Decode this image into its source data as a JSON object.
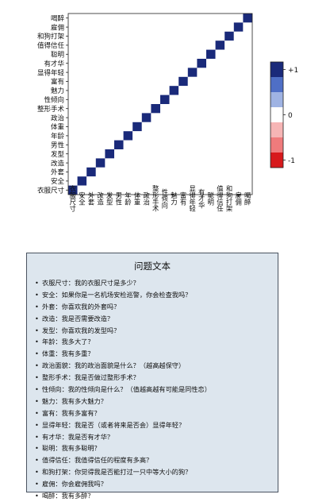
{
  "chart_data": {
    "type": "heatmap",
    "row_labels": [
      "喝醉",
      "雇佣",
      "和狗打架",
      "值得信任",
      "聪明",
      "有才华",
      "显得年轻",
      "富有",
      "魅力",
      "性倾向",
      "整形手术",
      "政治",
      "体重",
      "年龄",
      "男性",
      "发型",
      "改造",
      "外套",
      "安全",
      "衣服尺寸"
    ],
    "col_labels": [
      "衣服尺寸",
      "安全",
      "外套",
      "改造",
      "发型",
      "男性",
      "年龄",
      "体重",
      "政治",
      "整形手术",
      "性倾向",
      "魅力",
      "富有",
      "显得年轻",
      "有才华",
      "聪明",
      "值得信任",
      "和狗打架",
      "雇佣",
      "喝醉"
    ],
    "values": [
      [
        0.0,
        0.0,
        0.0,
        0.0,
        0.0,
        0.0,
        0.0,
        0.0,
        0.0,
        0.0,
        0.0,
        0.0,
        0.0,
        0.0,
        0.0,
        0.0,
        0.0,
        0.0,
        0.0,
        1.0
      ],
      [
        0.0,
        0.0,
        0.0,
        0.0,
        0.0,
        0.0,
        0.0,
        0.0,
        0.0,
        0.0,
        0.0,
        0.0,
        0.0,
        0.0,
        0.0,
        0.0,
        0.0,
        0.0,
        1.0,
        0.0
      ],
      [
        0.0,
        0.0,
        0.0,
        0.0,
        0.0,
        0.0,
        0.0,
        0.0,
        0.0,
        0.0,
        0.0,
        0.0,
        0.0,
        0.0,
        0.0,
        0.0,
        0.0,
        1.0,
        0.0,
        0.0
      ],
      [
        0.0,
        0.0,
        0.0,
        0.0,
        0.0,
        0.0,
        0.0,
        0.0,
        0.0,
        0.0,
        0.0,
        0.0,
        0.0,
        0.0,
        0.0,
        0.0,
        1.0,
        0.0,
        0.0,
        0.0
      ],
      [
        0.0,
        0.0,
        0.0,
        0.0,
        0.0,
        0.0,
        0.0,
        0.0,
        0.0,
        0.0,
        0.0,
        0.0,
        0.0,
        0.0,
        0.0,
        1.0,
        0.0,
        0.0,
        0.0,
        0.0
      ],
      [
        0.0,
        0.0,
        0.0,
        0.0,
        0.0,
        0.0,
        0.0,
        0.0,
        0.0,
        0.0,
        0.0,
        0.0,
        0.0,
        0.0,
        1.0,
        0.0,
        0.0,
        0.0,
        0.0,
        0.0
      ],
      [
        0.0,
        0.0,
        0.0,
        0.0,
        0.0,
        0.0,
        0.0,
        0.0,
        0.0,
        0.0,
        0.0,
        0.0,
        0.0,
        1.0,
        0.0,
        0.0,
        0.0,
        0.0,
        0.0,
        0.0
      ],
      [
        0.0,
        0.0,
        0.0,
        0.0,
        0.0,
        0.0,
        0.0,
        0.0,
        0.0,
        0.0,
        0.0,
        0.0,
        1.0,
        0.0,
        0.0,
        0.0,
        0.0,
        0.0,
        0.0,
        0.0
      ],
      [
        0.0,
        0.0,
        0.0,
        0.0,
        0.0,
        0.0,
        0.0,
        0.0,
        0.0,
        0.0,
        0.0,
        1.0,
        0.0,
        0.0,
        0.0,
        0.0,
        0.0,
        0.0,
        0.0,
        0.0
      ],
      [
        0.0,
        0.0,
        0.0,
        0.0,
        0.0,
        0.0,
        0.0,
        0.0,
        0.0,
        0.0,
        1.0,
        0.0,
        0.0,
        0.0,
        0.0,
        0.0,
        0.0,
        0.0,
        0.0,
        0.0
      ],
      [
        0.0,
        0.0,
        0.0,
        0.0,
        0.0,
        0.0,
        0.0,
        0.0,
        0.0,
        1.0,
        0.0,
        0.0,
        0.0,
        0.0,
        0.0,
        0.0,
        0.0,
        0.0,
        0.0,
        0.0
      ],
      [
        0.0,
        0.0,
        0.0,
        0.0,
        0.0,
        0.0,
        0.0,
        0.0,
        1.0,
        0.0,
        0.0,
        0.0,
        0.0,
        0.0,
        0.0,
        0.0,
        0.0,
        0.0,
        0.0,
        0.0
      ],
      [
        0.0,
        0.0,
        0.0,
        0.0,
        0.0,
        0.0,
        0.0,
        1.0,
        0.0,
        0.0,
        0.0,
        0.0,
        0.0,
        0.0,
        0.0,
        0.0,
        0.0,
        0.0,
        0.0,
        0.0
      ],
      [
        0.0,
        0.0,
        0.0,
        0.0,
        0.0,
        0.0,
        1.0,
        0.0,
        0.0,
        0.0,
        0.0,
        0.0,
        0.0,
        0.0,
        0.0,
        0.0,
        0.0,
        0.0,
        0.0,
        0.0
      ],
      [
        0.0,
        0.0,
        0.0,
        0.0,
        0.0,
        1.0,
        0.0,
        0.0,
        0.0,
        0.0,
        0.0,
        0.0,
        0.0,
        0.0,
        0.0,
        0.0,
        0.0,
        0.0,
        0.0,
        0.0
      ],
      [
        0.0,
        0.0,
        0.0,
        0.0,
        1.0,
        0.0,
        0.0,
        0.0,
        0.0,
        0.0,
        0.0,
        0.0,
        0.0,
        0.0,
        0.0,
        0.0,
        0.0,
        0.0,
        0.0,
        0.0
      ],
      [
        0.0,
        0.0,
        0.0,
        1.0,
        0.0,
        0.0,
        0.0,
        0.0,
        0.0,
        0.0,
        0.0,
        0.0,
        0.0,
        0.0,
        0.0,
        0.0,
        0.0,
        0.0,
        0.0,
        0.0
      ],
      [
        0.0,
        0.0,
        1.0,
        0.0,
        0.0,
        0.0,
        0.0,
        0.0,
        0.0,
        0.0,
        0.0,
        0.0,
        0.0,
        0.0,
        0.0,
        0.0,
        0.0,
        0.0,
        0.0,
        0.0
      ],
      [
        0.0,
        1.0,
        0.0,
        0.0,
        0.0,
        0.0,
        0.0,
        0.0,
        0.0,
        0.0,
        0.0,
        0.0,
        0.0,
        0.0,
        0.0,
        0.0,
        0.0,
        0.0,
        0.0,
        0.0
      ],
      [
        1.0,
        0.0,
        0.0,
        0.0,
        0.0,
        0.0,
        0.0,
        0.0,
        0.0,
        0.0,
        0.0,
        0.0,
        0.0,
        0.0,
        0.0,
        0.0,
        0.0,
        0.0,
        0.0,
        0.0
      ]
    ],
    "vmin": -1,
    "vmax": 1,
    "colorbar_ticks": [
      {
        "value": 1,
        "label": "+1"
      },
      {
        "value": 0,
        "label": "0"
      },
      {
        "value": -1,
        "label": "-1"
      }
    ],
    "colors": {
      "neg_strong": "#d7191c",
      "neg_mid": "#ef7b7c",
      "neg_light": "#f6b5b5",
      "zero": "#ffffff",
      "pos_light": "#9fb3e3",
      "pos_mid": "#4f6fc6",
      "pos_strong": "#1a2a7a"
    }
  },
  "questions": {
    "title": "问题文本",
    "items": [
      "衣服尺寸：我的衣服尺寸是多少？",
      "安全：如果你是一名机场安检巡警，你会检查我吗？",
      "外套：你喜欢我的外套吗？",
      "改造：我是否需要改造？",
      "发型：你喜欢我的发型吗？",
      "年龄：我多大了？",
      "体重：我有多重？",
      "政治面貌：我的政治面貌是什么？（越高越保守）",
      "整形手术：我是否做过整形手术？",
      "性倾向：我的性倾向是什么？（值越高越有可能是同性恋）",
      "魅力：我有多大魅力？",
      "富有：我有多富有？",
      "显得年轻：我是否（或者将来是否会）显得年轻？",
      "有才华：我是否有才华？",
      "聪明：我有多聪明？",
      "值得信任：我值得信任的程度有多高？",
      "和狗打架：你觉得我是否能打过一只中等大小的狗？",
      "雇佣：你会雇佣我吗？",
      "喝醉：我有多醉？"
    ]
  }
}
